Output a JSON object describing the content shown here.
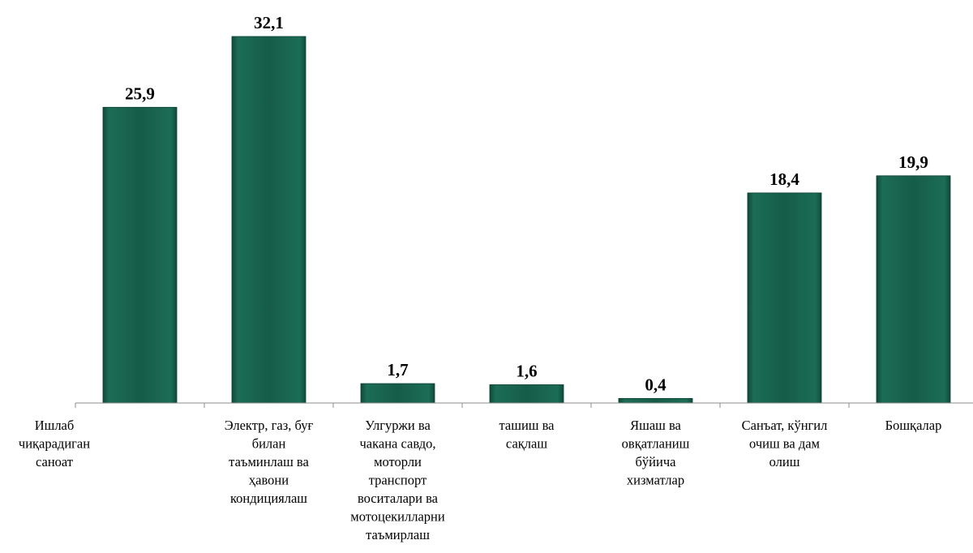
{
  "chart_data": {
    "type": "bar",
    "categories": [
      [
        "Ишлаб",
        "чиқарадиган",
        "саноат"
      ],
      [
        "Электр, газ, буғ",
        "билан",
        "таъминлаш ва",
        "ҳавони",
        "кондициялаш"
      ],
      [
        "Улгуржи ва",
        "чакана савдо,",
        "моторли",
        "транспорт",
        "воситалари ва",
        "мотоцекилларни",
        "таъмирлаш"
      ],
      [
        "ташиш ва",
        "сақлаш"
      ],
      [
        "Яшаш ва",
        "овқатланиш",
        "бўйича",
        "хизматлар"
      ],
      [
        "Санъат, кўнгил",
        "очиш ва дам",
        "олиш"
      ],
      [
        "Бошқалар"
      ]
    ],
    "values": [
      25.9,
      32.1,
      1.7,
      1.6,
      0.4,
      18.4,
      19.9
    ],
    "value_labels": [
      "25,9",
      "32,1",
      "1,7",
      "1,6",
      "0,4",
      "18,4",
      "19,9"
    ],
    "bar_color": "#165c48",
    "ylim": [
      0,
      32.1
    ],
    "grid": false,
    "legend": "none"
  }
}
